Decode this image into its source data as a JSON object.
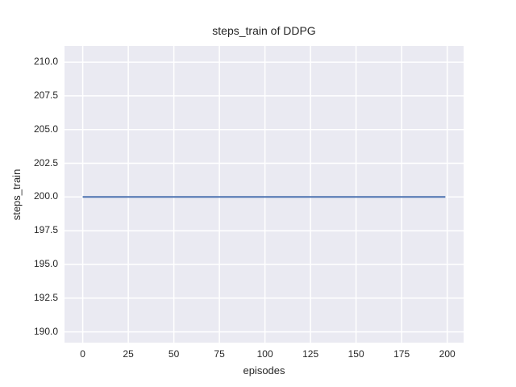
{
  "chart_data": {
    "type": "line",
    "title": "steps_train of DDPG",
    "xlabel": "episodes",
    "ylabel": "steps_train",
    "xlim": [
      -10,
      209
    ],
    "ylim": [
      189.2,
      211.2
    ],
    "xticks": [
      0,
      25,
      50,
      75,
      100,
      125,
      150,
      175,
      200
    ],
    "xtick_labels": [
      "0",
      "25",
      "50",
      "75",
      "100",
      "125",
      "150",
      "175",
      "200"
    ],
    "yticks": [
      190.0,
      192.5,
      195.0,
      197.5,
      200.0,
      202.5,
      205.0,
      207.5,
      210.0
    ],
    "ytick_labels": [
      "190.0",
      "192.5",
      "195.0",
      "197.5",
      "200.0",
      "202.5",
      "205.0",
      "207.5",
      "210.0"
    ],
    "grid": true,
    "legend": false,
    "style": {
      "plot_background": "#eaeaf2",
      "grid_color": "#ffffff",
      "text_color": "#262626",
      "line_width": 2
    },
    "series": [
      {
        "name": "steps_train",
        "color": "#4c72b0",
        "x": [
          0,
          199
        ],
        "y": [
          200,
          200
        ]
      }
    ]
  }
}
